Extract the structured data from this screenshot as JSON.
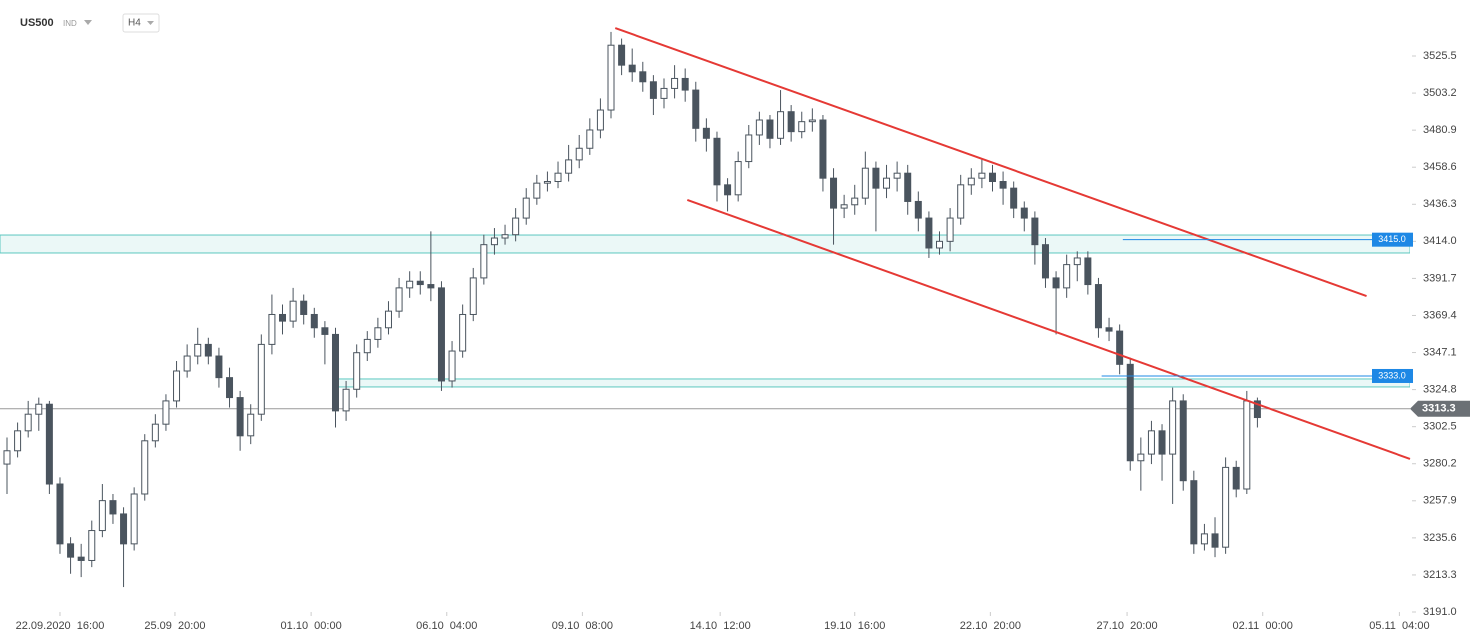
{
  "chart_data": {
    "type": "candlestick",
    "symbol": "US500",
    "instrument": "IND",
    "timeframe": "H4",
    "candles": [
      [
        3280,
        3296,
        3262,
        3288
      ],
      [
        3288,
        3305,
        3284,
        3300
      ],
      [
        3300,
        3318,
        3296,
        3310
      ],
      [
        3310,
        3320,
        3300,
        3316
      ],
      [
        3316,
        3318,
        3262,
        3268
      ],
      [
        3268,
        3272,
        3226,
        3232
      ],
      [
        3232,
        3236,
        3214,
        3224
      ],
      [
        3224,
        3232,
        3212,
        3222
      ],
      [
        3222,
        3246,
        3218,
        3240
      ],
      [
        3240,
        3268,
        3236,
        3258
      ],
      [
        3258,
        3262,
        3244,
        3250
      ],
      [
        3250,
        3254,
        3206,
        3232
      ],
      [
        3232,
        3266,
        3228,
        3262
      ],
      [
        3262,
        3298,
        3258,
        3294
      ],
      [
        3294,
        3310,
        3290,
        3304
      ],
      [
        3304,
        3322,
        3300,
        3318
      ],
      [
        3318,
        3342,
        3314,
        3336
      ],
      [
        3336,
        3352,
        3332,
        3345
      ],
      [
        3345,
        3362,
        3340,
        3352
      ],
      [
        3352,
        3356,
        3340,
        3345
      ],
      [
        3345,
        3350,
        3326,
        3332
      ],
      [
        3332,
        3338,
        3314,
        3320
      ],
      [
        3320,
        3324,
        3288,
        3297
      ],
      [
        3297,
        3316,
        3292,
        3310
      ],
      [
        3310,
        3358,
        3306,
        3352
      ],
      [
        3352,
        3382,
        3346,
        3370
      ],
      [
        3370,
        3376,
        3358,
        3366
      ],
      [
        3366,
        3386,
        3362,
        3378
      ],
      [
        3378,
        3382,
        3364,
        3370
      ],
      [
        3370,
        3374,
        3356,
        3362
      ],
      [
        3362,
        3366,
        3340,
        3358
      ],
      [
        3358,
        3362,
        3302,
        3312
      ],
      [
        3312,
        3330,
        3306,
        3325
      ],
      [
        3325,
        3352,
        3320,
        3347
      ],
      [
        3347,
        3360,
        3342,
        3355
      ],
      [
        3355,
        3368,
        3350,
        3362
      ],
      [
        3362,
        3378,
        3358,
        3372
      ],
      [
        3372,
        3392,
        3368,
        3386
      ],
      [
        3386,
        3396,
        3380,
        3390
      ],
      [
        3390,
        3396,
        3382,
        3388
      ],
      [
        3388,
        3420,
        3378,
        3386
      ],
      [
        3386,
        3390,
        3324,
        3330
      ],
      [
        3330,
        3354,
        3326,
        3348
      ],
      [
        3348,
        3376,
        3344,
        3370
      ],
      [
        3370,
        3398,
        3366,
        3392
      ],
      [
        3392,
        3418,
        3388,
        3412
      ],
      [
        3412,
        3422,
        3406,
        3416
      ],
      [
        3416,
        3424,
        3412,
        3418
      ],
      [
        3418,
        3434,
        3414,
        3428
      ],
      [
        3428,
        3446,
        3424,
        3440
      ],
      [
        3440,
        3454,
        3436,
        3449
      ],
      [
        3449,
        3456,
        3444,
        3450
      ],
      [
        3450,
        3462,
        3446,
        3455
      ],
      [
        3455,
        3472,
        3450,
        3463
      ],
      [
        3463,
        3478,
        3458,
        3470
      ],
      [
        3470,
        3488,
        3466,
        3481
      ],
      [
        3481,
        3500,
        3476,
        3493
      ],
      [
        3493,
        3540,
        3488,
        3532
      ],
      [
        3532,
        3536,
        3514,
        3520
      ],
      [
        3520,
        3530,
        3510,
        3516
      ],
      [
        3516,
        3522,
        3504,
        3510
      ],
      [
        3510,
        3514,
        3490,
        3500
      ],
      [
        3500,
        3512,
        3494,
        3506
      ],
      [
        3506,
        3520,
        3500,
        3512
      ],
      [
        3512,
        3518,
        3498,
        3505
      ],
      [
        3505,
        3510,
        3474,
        3482
      ],
      [
        3482,
        3488,
        3468,
        3476
      ],
      [
        3476,
        3480,
        3438,
        3448
      ],
      [
        3448,
        3452,
        3432,
        3442
      ],
      [
        3442,
        3468,
        3438,
        3462
      ],
      [
        3462,
        3484,
        3458,
        3478
      ],
      [
        3478,
        3492,
        3472,
        3487
      ],
      [
        3487,
        3490,
        3470,
        3476
      ],
      [
        3476,
        3505,
        3472,
        3492
      ],
      [
        3492,
        3496,
        3474,
        3480
      ],
      [
        3480,
        3492,
        3476,
        3486
      ],
      [
        3486,
        3494,
        3480,
        3487
      ],
      [
        3487,
        3490,
        3444,
        3452
      ],
      [
        3452,
        3458,
        3412,
        3434
      ],
      [
        3434,
        3442,
        3428,
        3436
      ],
      [
        3436,
        3448,
        3430,
        3440
      ],
      [
        3440,
        3468,
        3436,
        3458
      ],
      [
        3458,
        3462,
        3420,
        3446
      ],
      [
        3446,
        3460,
        3440,
        3452
      ],
      [
        3452,
        3462,
        3444,
        3455
      ],
      [
        3455,
        3460,
        3430,
        3438
      ],
      [
        3438,
        3444,
        3420,
        3428
      ],
      [
        3428,
        3432,
        3404,
        3410
      ],
      [
        3410,
        3420,
        3406,
        3414
      ],
      [
        3414,
        3434,
        3408,
        3428
      ],
      [
        3428,
        3454,
        3424,
        3448
      ],
      [
        3448,
        3458,
        3442,
        3452
      ],
      [
        3452,
        3464,
        3446,
        3455
      ],
      [
        3455,
        3460,
        3444,
        3450
      ],
      [
        3450,
        3456,
        3436,
        3446
      ],
      [
        3446,
        3450,
        3428,
        3434
      ],
      [
        3434,
        3438,
        3420,
        3428
      ],
      [
        3428,
        3432,
        3400,
        3412
      ],
      [
        3412,
        3416,
        3386,
        3392
      ],
      [
        3392,
        3396,
        3358,
        3386
      ],
      [
        3386,
        3406,
        3380,
        3400
      ],
      [
        3400,
        3408,
        3390,
        3404
      ],
      [
        3404,
        3408,
        3382,
        3388
      ],
      [
        3388,
        3392,
        3356,
        3362
      ],
      [
        3362,
        3368,
        3354,
        3360
      ],
      [
        3360,
        3364,
        3334,
        3340
      ],
      [
        3340,
        3344,
        3276,
        3282
      ],
      [
        3282,
        3296,
        3264,
        3286
      ],
      [
        3286,
        3306,
        3280,
        3300
      ],
      [
        3300,
        3304,
        3270,
        3286
      ],
      [
        3286,
        3326,
        3256,
        3318
      ],
      [
        3318,
        3322,
        3264,
        3270
      ],
      [
        3270,
        3276,
        3226,
        3232
      ],
      [
        3232,
        3244,
        3228,
        3238
      ],
      [
        3238,
        3248,
        3224,
        3230
      ],
      [
        3230,
        3284,
        3226,
        3278
      ],
      [
        3278,
        3282,
        3260,
        3265
      ],
      [
        3265,
        3324,
        3262,
        3318
      ],
      [
        3318,
        3320,
        3302,
        3308
      ]
    ],
    "xlim": [
      -0.66,
      132.4
    ],
    "ylim": [
      3191,
      3559.2
    ],
    "yticks": [
      3525.5,
      3503.2,
      3480.9,
      3458.6,
      3436.3,
      {
        "value": 3414,
        "label": "3414.0"
      },
      3391.7,
      3369.4,
      3347.1,
      3324.8,
      3302.5,
      3280.2,
      3257.9,
      3235.6,
      3213.3,
      {
        "value": 3191,
        "label": "3191.0"
      }
    ],
    "xticks": [
      {
        "value": 5,
        "label": "22.09.2020  16:00"
      },
      {
        "value": 15.85,
        "label": "25.09  20:00"
      },
      {
        "value": 28.7,
        "label": "01.10  00:00"
      },
      {
        "value": 41.5,
        "label": "06.10  04:00"
      },
      {
        "value": 54.3,
        "label": "09.10  08:00"
      },
      {
        "value": 67.3,
        "label": "14.10  12:00"
      },
      {
        "value": 80,
        "label": "19.10  16:00"
      },
      {
        "value": 92.8,
        "label": "22.10  20:00"
      },
      {
        "value": 105.7,
        "label": "27.10  20:00"
      },
      {
        "value": 118.5,
        "label": "02.11  00:00"
      },
      {
        "value": 131.4,
        "label": "05.11  04:00"
      }
    ],
    "zones": [
      {
        "from": 3407.0,
        "to": 3417.8,
        "start": -0.66
      },
      {
        "from": 3326.4,
        "to": 3331.2,
        "start": 31
      }
    ],
    "levels": [
      {
        "value": 3415,
        "label": "3415.0",
        "start": 105.3
      },
      {
        "value": 3333,
        "label": "3333.0",
        "start": 103.3
      }
    ],
    "trendlines": [
      [
        [
          57.4,
          3542.3
        ],
        [
          128.3,
          3381.1
        ]
      ],
      [
        [
          64.2,
          3438.9
        ],
        [
          132.4,
          3283.1
        ]
      ]
    ],
    "current": 3313.3,
    "colors": {
      "up": "#ffffff",
      "down": "#4a545e",
      "trend": "#e53935",
      "zone": "#5cc8c0",
      "level": "#1e88e5"
    }
  }
}
